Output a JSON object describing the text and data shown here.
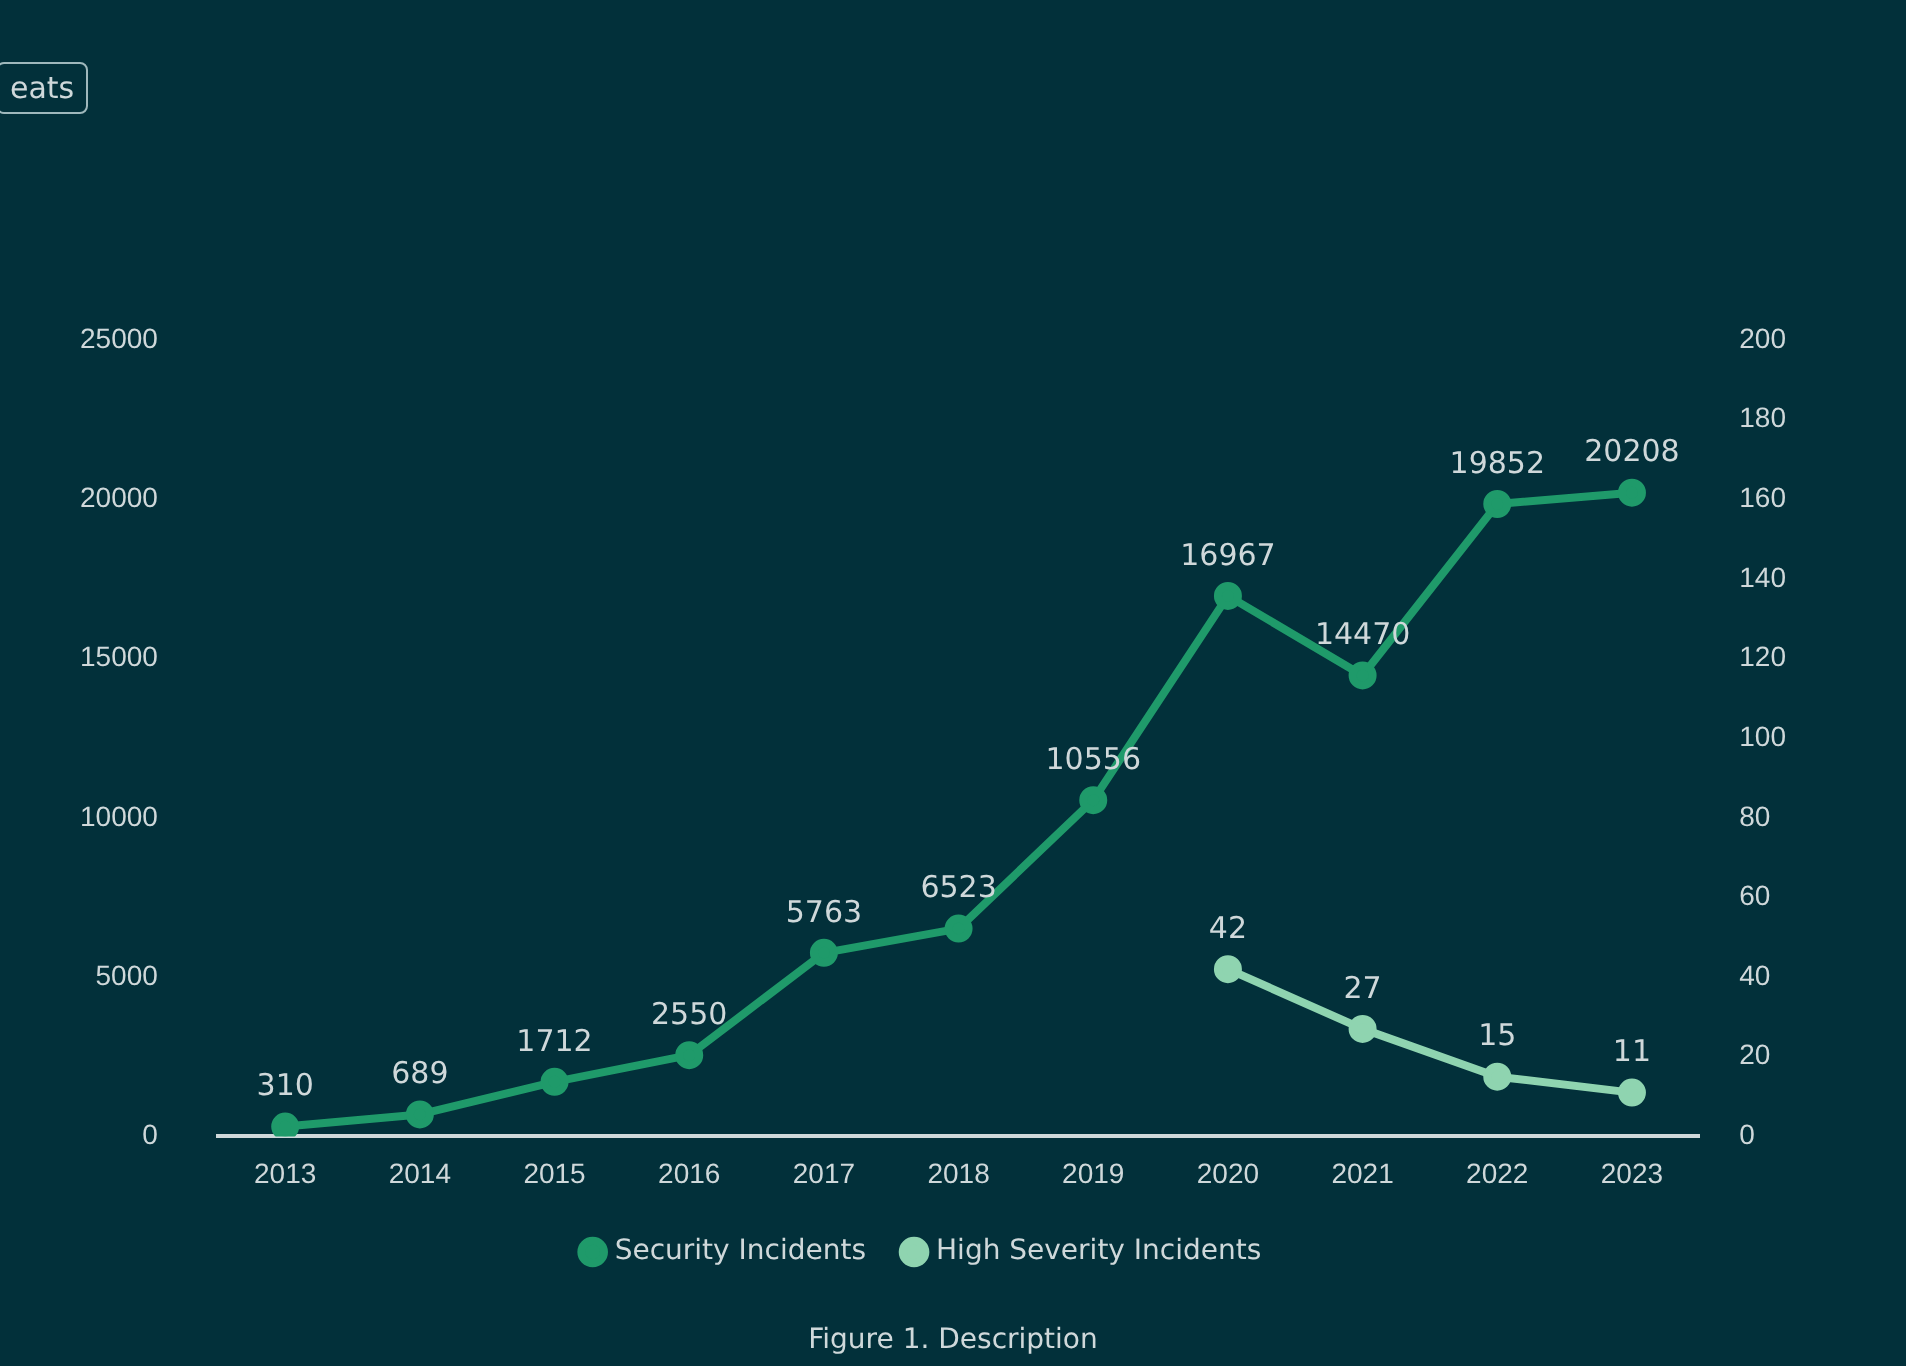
{
  "chart_data": {
    "type": "line",
    "categories": [
      "2013",
      "2014",
      "2015",
      "2016",
      "2017",
      "2018",
      "2019",
      "2020",
      "2021",
      "2022",
      "2023"
    ],
    "series": [
      {
        "name": "Security Incidents",
        "color": "#1f9a6a",
        "values": [
          310,
          689,
          1712,
          2550,
          5763,
          6523,
          10556,
          16967,
          14470,
          19852,
          20208
        ]
      },
      {
        "name": "High Severity Incidents",
        "color": "#8fd4b0",
        "axis": "y2",
        "values": [
          null,
          null,
          null,
          null,
          null,
          null,
          null,
          42,
          27,
          15,
          11
        ]
      }
    ],
    "ylim": [
      0,
      25000
    ],
    "yticks": [
      0,
      5000,
      10000,
      15000,
      20000,
      25000
    ],
    "y2lim": [
      0,
      200
    ],
    "y2ticks": [
      0,
      20,
      40,
      60,
      80,
      100,
      120,
      140,
      160,
      180,
      200
    ],
    "data_labels": true,
    "legend": "bottom",
    "grid": false,
    "marker": "circle",
    "line_style": "solid",
    "annotations": [
      "eats",
      "Figure 1. Description"
    ]
  }
}
